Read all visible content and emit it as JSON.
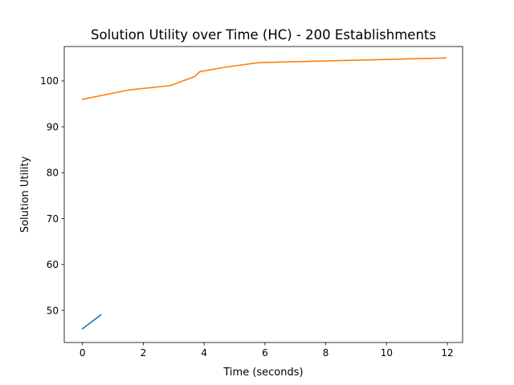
{
  "chart_data": {
    "type": "line",
    "title": "Solution Utility over Time (HC) -  200 Establishments",
    "xlabel": "Time (seconds)",
    "ylabel": "Solution Utility",
    "xlim": [
      -0.6,
      12.5
    ],
    "ylim": [
      43,
      107.5
    ],
    "xticks": [
      0,
      2,
      4,
      6,
      8,
      10,
      12
    ],
    "yticks": [
      50,
      60,
      70,
      80,
      90,
      100
    ],
    "grid": false,
    "legend": "none",
    "series": [
      {
        "color": "#1f77b4",
        "x": [
          0,
          0.6
        ],
        "y": [
          46,
          49
        ]
      },
      {
        "color": "#ff7f0e",
        "x": [
          0,
          1.5,
          2.9,
          3.7,
          3.85,
          4.7,
          5.8,
          11.95
        ],
        "y": [
          96,
          98,
          99,
          101,
          102,
          103,
          104,
          105
        ]
      }
    ]
  }
}
